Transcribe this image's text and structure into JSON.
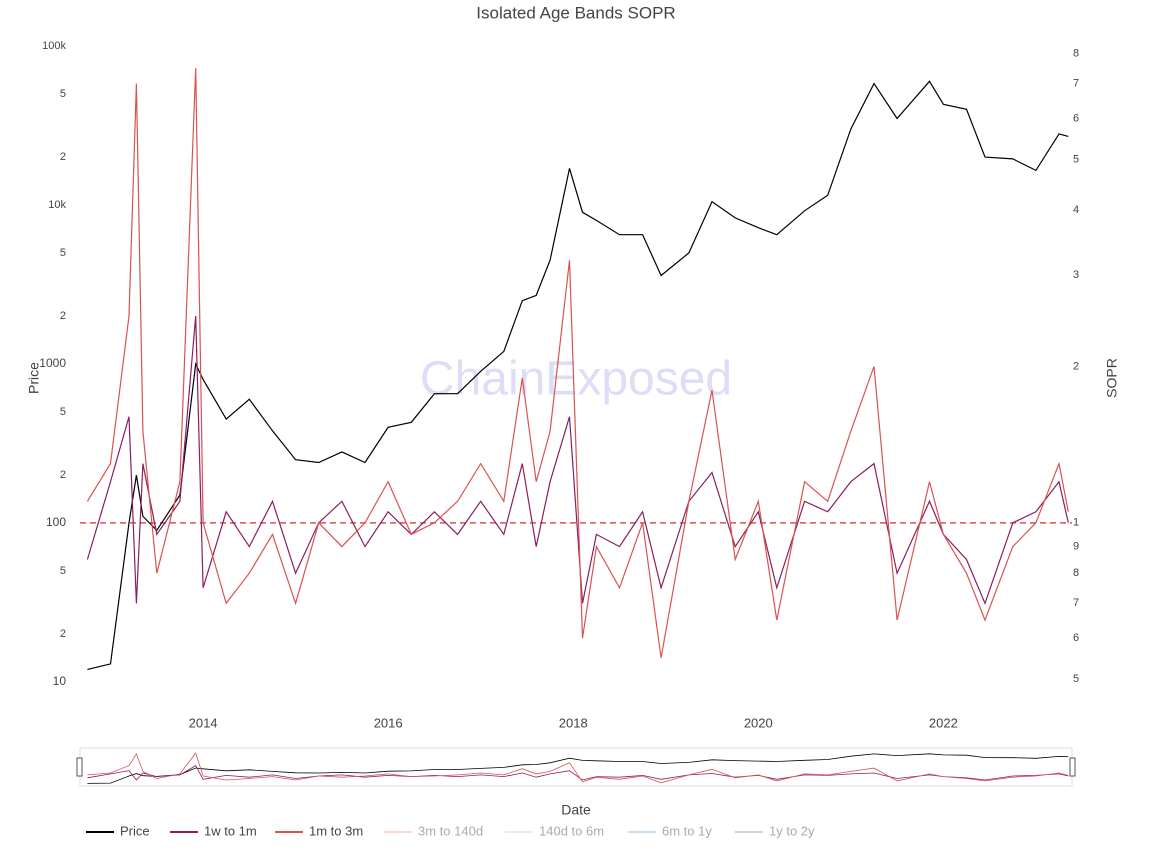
{
  "chart_data": {
    "type": "line",
    "title": "Isolated Age Bands SOPR",
    "watermark": "ChainExposed",
    "xlabel": "Date",
    "ylabel": "Price",
    "y2label": "SOPR",
    "x": [
      2012.75,
      2013.0,
      2013.2,
      2013.28,
      2013.35,
      2013.5,
      2013.75,
      2013.92,
      2014.0,
      2014.25,
      2014.5,
      2014.75,
      2015.0,
      2015.25,
      2015.5,
      2015.75,
      2016.0,
      2016.25,
      2016.5,
      2016.75,
      2017.0,
      2017.25,
      2017.45,
      2017.6,
      2017.75,
      2017.96,
      2018.1,
      2018.25,
      2018.5,
      2018.75,
      2018.95,
      2019.25,
      2019.5,
      2019.75,
      2020.0,
      2020.2,
      2020.5,
      2020.75,
      2021.0,
      2021.25,
      2021.5,
      2021.85,
      2022.0,
      2022.25,
      2022.45,
      2022.75,
      2023.0,
      2023.25,
      2023.35
    ],
    "xlim": [
      2012.67,
      2023.39
    ],
    "xticks": [
      2014,
      2016,
      2018,
      2020,
      2022
    ],
    "ylog": true,
    "ylim": [
      10,
      100000
    ],
    "yticks": [
      10,
      {
        "value": 20,
        "label": "2"
      },
      {
        "value": 50,
        "label": "5"
      },
      100,
      {
        "value": 200,
        "label": "2"
      },
      {
        "value": 500,
        "label": "5"
      },
      1000,
      {
        "value": 2000,
        "label": "2"
      },
      {
        "value": 5000,
        "label": "5"
      },
      {
        "value": 10000,
        "label": "10k"
      },
      {
        "value": 20000,
        "label": "2"
      },
      {
        "value": 50000,
        "label": "5"
      },
      {
        "value": 100000,
        "label": "100k"
      }
    ],
    "y2log": true,
    "y2lim": [
      0.494,
      8.27
    ],
    "y2ticks": [
      {
        "value": 0.5,
        "label": "5"
      },
      {
        "value": 0.6,
        "label": "6"
      },
      {
        "value": 0.7,
        "label": "7"
      },
      {
        "value": 0.8,
        "label": "8"
      },
      {
        "value": 0.9,
        "label": "9"
      },
      1,
      2,
      3,
      4,
      5,
      6,
      7,
      8
    ],
    "reference_line": {
      "axis": "y2",
      "value": 1,
      "color": "#d9534f"
    },
    "series": [
      {
        "name": "Price",
        "color": "#000000",
        "axis": "y",
        "values": [
          12,
          13,
          100,
          200,
          110,
          90,
          150,
          1000,
          800,
          450,
          600,
          380,
          250,
          240,
          280,
          240,
          400,
          430,
          650,
          650,
          900,
          1200,
          2500,
          2700,
          4500,
          17000,
          9000,
          8000,
          6500,
          6500,
          3600,
          5000,
          10500,
          8300,
          7200,
          6500,
          9200,
          11500,
          30000,
          58000,
          35000,
          60000,
          43000,
          40000,
          20000,
          19500,
          16500,
          28000,
          27000
        ]
      },
      {
        "name": "1w to 1m",
        "color": "#8b1e5e",
        "axis": "y2",
        "values": [
          0.85,
          1.2,
          1.6,
          0.7,
          1.3,
          0.95,
          1.1,
          2.5,
          0.75,
          1.05,
          0.9,
          1.1,
          0.8,
          1.0,
          1.1,
          0.9,
          1.05,
          0.95,
          1.05,
          0.95,
          1.1,
          0.95,
          1.3,
          0.9,
          1.2,
          1.6,
          0.7,
          0.95,
          0.9,
          1.05,
          0.75,
          1.1,
          1.25,
          0.9,
          1.05,
          0.75,
          1.1,
          1.05,
          1.2,
          1.3,
          0.8,
          1.1,
          0.95,
          0.85,
          0.7,
          1.0,
          1.05,
          1.2,
          1.0
        ]
      },
      {
        "name": "1m to 3m",
        "color": "#d9534f",
        "axis": "y2",
        "values": [
          1.1,
          1.3,
          2.5,
          7.0,
          1.5,
          0.8,
          1.2,
          7.5,
          1.0,
          0.7,
          0.8,
          0.95,
          0.7,
          1.0,
          0.9,
          1.0,
          1.2,
          0.95,
          1.0,
          1.1,
          1.3,
          1.1,
          1.9,
          1.2,
          1.5,
          3.2,
          0.6,
          0.9,
          0.75,
          1.0,
          0.55,
          1.1,
          1.8,
          0.85,
          1.1,
          0.65,
          1.2,
          1.1,
          1.5,
          2.0,
          0.65,
          1.2,
          0.95,
          0.8,
          0.65,
          0.9,
          1.0,
          1.3,
          1.05
        ]
      },
      {
        "name": "3m to 140d",
        "color": "#f4b89a",
        "axis": "y2",
        "visible": "legendonly"
      },
      {
        "name": "140d to 6m",
        "color": "#bfe0ee",
        "axis": "y2",
        "visible": "legendonly"
      },
      {
        "name": "6m to 1y",
        "color": "#8fbfe0",
        "axis": "y2",
        "visible": "legendonly"
      },
      {
        "name": "1y to 2y",
        "color": "#a9a3d1",
        "axis": "y2",
        "visible": "legendonly"
      }
    ]
  }
}
